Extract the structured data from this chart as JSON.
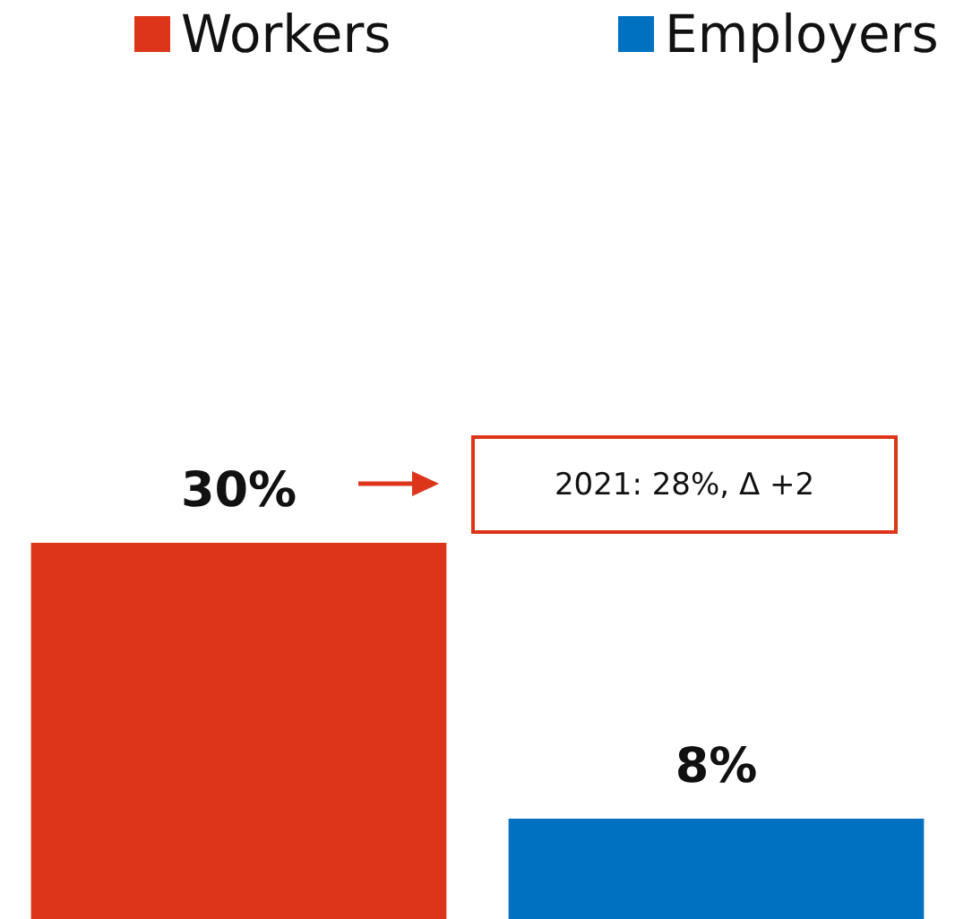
{
  "chart_data": {
    "type": "bar",
    "categories": [
      null
    ],
    "series": [
      {
        "name": "Workers",
        "color": "#dc3519",
        "values": [
          30
        ],
        "value_labels": [
          "30%"
        ]
      },
      {
        "name": "Employers",
        "color": "#0070c0",
        "values": [
          8
        ],
        "value_labels": [
          "8%"
        ]
      }
    ],
    "legend": "top",
    "annotations": [
      "2021: 28%, Δ +2"
    ]
  }
}
